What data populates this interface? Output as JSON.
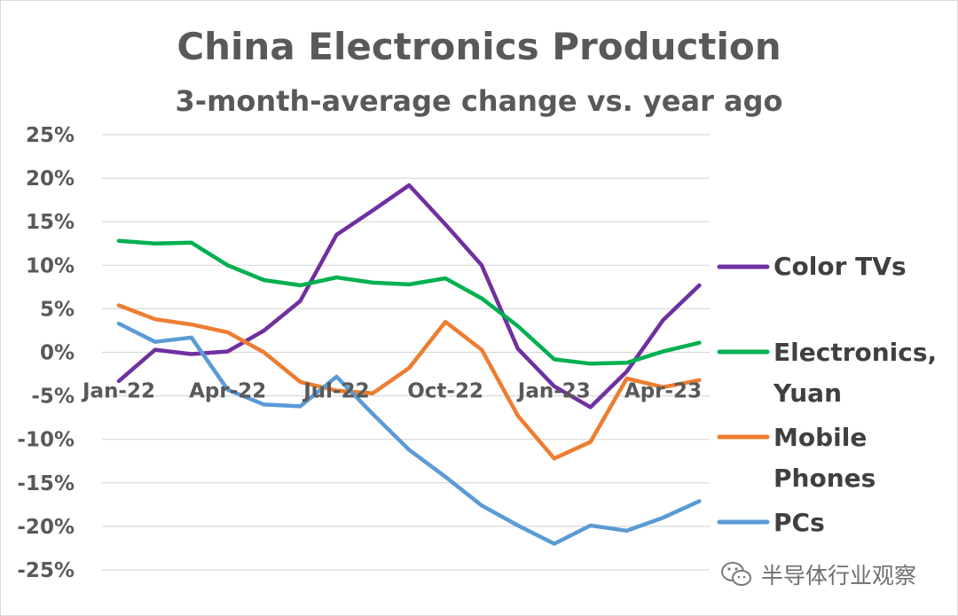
{
  "chart_data": {
    "type": "line",
    "title": "China Electronics Production",
    "subtitle": "3-month-average change vs. year ago",
    "x_tick_labels": [
      "Jan-22",
      "Apr-22",
      "Jul-22",
      "Oct-22",
      "Jan-23",
      "Apr-23"
    ],
    "x_months": [
      "Jan-22",
      "Feb-22",
      "Mar-22",
      "Apr-22",
      "May-22",
      "Jun-22",
      "Jul-22",
      "Aug-22",
      "Sep-22",
      "Oct-22",
      "Nov-22",
      "Dec-22",
      "Jan-23",
      "Feb-23",
      "Mar-23",
      "Apr-23",
      "May-23"
    ],
    "y_tick_labels": [
      "25%",
      "20%",
      "15%",
      "10%",
      "5%",
      "0%",
      "-5%",
      "-10%",
      "-15%",
      "-20%",
      "-25%"
    ],
    "ylim": [
      -25,
      25
    ],
    "y_unit": "%",
    "grid": true,
    "legend_position": "right",
    "series": [
      {
        "name": "Color TVs",
        "color": "#7030a0",
        "values": [
          -3.3,
          0.3,
          -0.2,
          0.1,
          2.5,
          5.9,
          13.5,
          16.3,
          19.2,
          14.7,
          10.0,
          0.4,
          -3.9,
          -6.3,
          -2.2,
          3.7,
          7.7
        ]
      },
      {
        "name": "Electronics, Yuan",
        "color": "#00b050",
        "values": [
          12.8,
          12.5,
          12.6,
          10.0,
          8.3,
          7.7,
          8.6,
          8.0,
          7.8,
          8.5,
          6.2,
          3.0,
          -0.8,
          -1.3,
          -1.2,
          0.1,
          1.1
        ]
      },
      {
        "name": "Mobile Phones",
        "color": "#ed7d31",
        "values": [
          5.4,
          3.8,
          3.2,
          2.3,
          0.0,
          -3.4,
          -4.4,
          -4.7,
          -1.8,
          3.5,
          0.3,
          -7.3,
          -12.2,
          -10.3,
          -3.0,
          -4.0,
          -3.2
        ]
      },
      {
        "name": "PCs",
        "color": "#5b9bd5",
        "values": [
          3.3,
          1.2,
          1.7,
          -4.3,
          -6.0,
          -6.2,
          -2.8,
          -7.1,
          -11.2,
          -14.3,
          -17.6,
          -19.9,
          -22.0,
          -19.9,
          -20.5,
          -19.0,
          -17.1
        ]
      }
    ]
  },
  "legend": {
    "color_tvs": "Color TVs",
    "electronics_line1": "Electronics,",
    "electronics_line2": "Yuan",
    "mobile_line1": "Mobile",
    "mobile_line2": "Phones",
    "pcs": "PCs"
  },
  "watermark": {
    "text": "半导体行业观察",
    "icon": "wechat-icon"
  }
}
